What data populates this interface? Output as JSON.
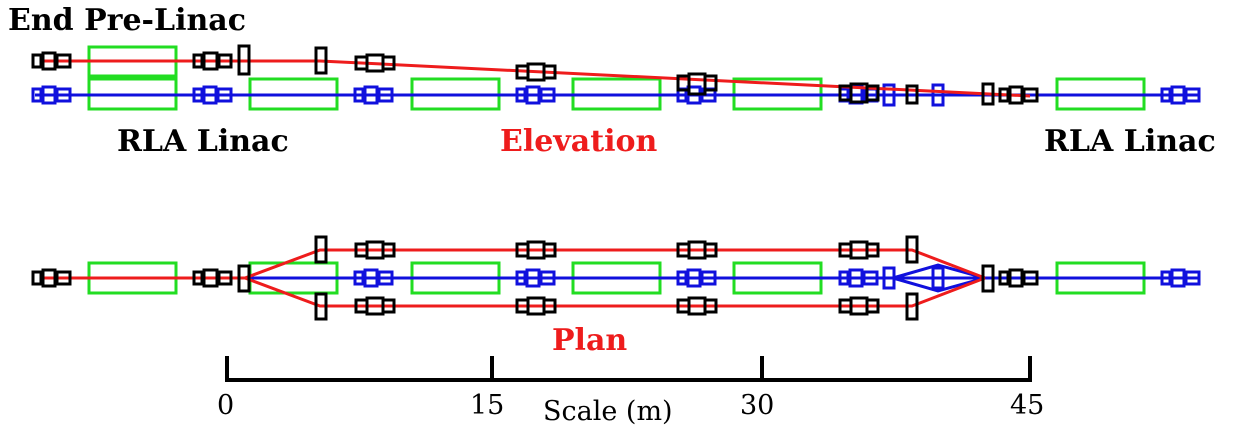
{
  "labels": {
    "end_pre_linac": "End Pre-Linac",
    "rla_linac_left": "RLA Linac",
    "elevation": "Elevation",
    "rla_linac_right": "RLA Linac",
    "plan": "Plan"
  },
  "scale": {
    "title": "Scale (m)",
    "ticks": [
      {
        "label": "0"
      },
      {
        "label": "15"
      },
      {
        "label": "30"
      },
      {
        "label": "45"
      }
    ]
  },
  "colors": {
    "beam_red": "#ee1c1c",
    "beam_blue": "#1010dd",
    "cavity_green": "#22dd22",
    "magnet_black": "#000000"
  }
}
